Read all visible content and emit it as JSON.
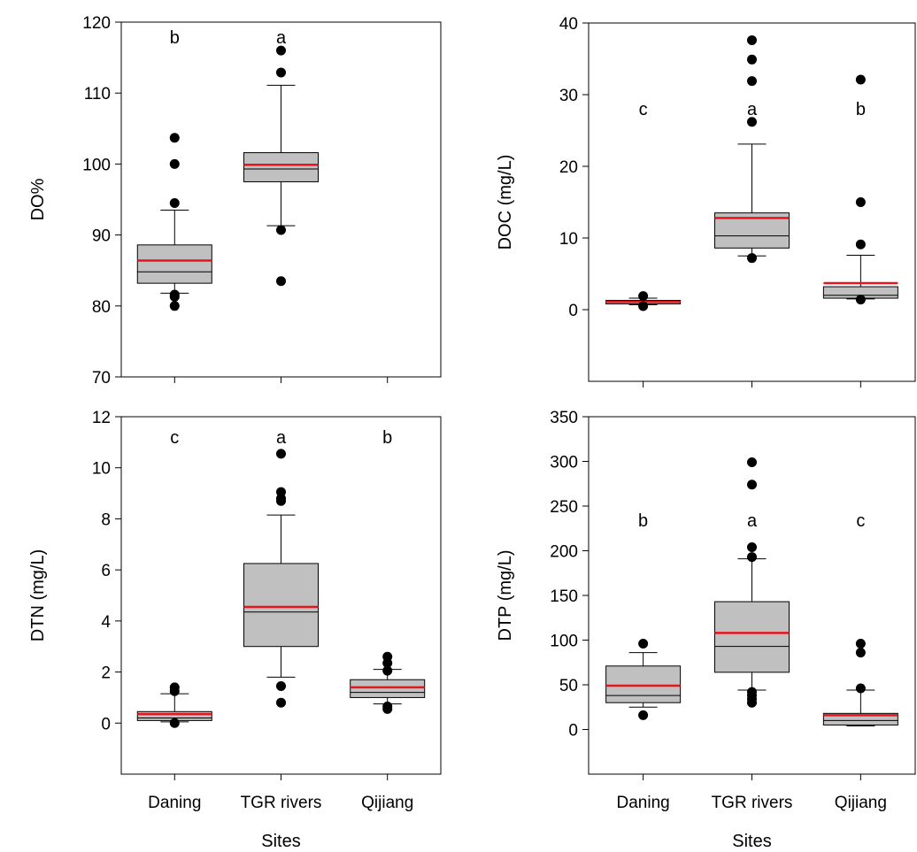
{
  "chart_data": [
    {
      "id": "do",
      "type": "box",
      "ylabel": "DO%",
      "xlabel": "",
      "ylim": [
        70,
        120
      ],
      "yticks": [
        70,
        80,
        90,
        100,
        110,
        120
      ],
      "categories": [
        "",
        "",
        ""
      ],
      "boxes": [
        {
          "q1": 83.2,
          "median": 84.8,
          "q3": 88.6,
          "mean": 86.4,
          "whisker_low": 81.8,
          "whisker_high": 93.5,
          "outliers": [
            80.0,
            81.3,
            81.6,
            94.5,
            100.0,
            103.7
          ],
          "letter": "b"
        },
        {
          "q1": 97.5,
          "median": 99.3,
          "q3": 101.6,
          "mean": 99.9,
          "whisker_low": 91.3,
          "whisker_high": 111.1,
          "outliers": [
            83.5,
            90.7,
            112.9,
            116.0
          ],
          "letter": "a"
        },
        null
      ]
    },
    {
      "id": "doc",
      "type": "box",
      "ylabel": "DOC (mg/L)",
      "xlabel": "",
      "ylim": [
        -10,
        40
      ],
      "yticks": [
        0,
        10,
        20,
        30,
        40
      ],
      "categories": [
        "",
        "",
        ""
      ],
      "boxes": [
        {
          "q1": 0.8,
          "median": 1.0,
          "q3": 1.3,
          "mean": 1.1,
          "whisker_low": 0.7,
          "whisker_high": 1.6,
          "outliers": [
            0.5,
            1.9
          ],
          "letter": "c"
        },
        {
          "q1": 8.6,
          "median": 10.3,
          "q3": 13.5,
          "mean": 12.8,
          "whisker_low": 7.5,
          "whisker_high": 23.1,
          "outliers": [
            7.2,
            26.2,
            31.9,
            34.9,
            37.6
          ],
          "letter": "a"
        },
        {
          "q1": 1.6,
          "median": 2.0,
          "q3": 3.2,
          "mean": 3.7,
          "whisker_low": 1.5,
          "whisker_high": 7.6,
          "outliers": [
            1.4,
            9.1,
            15.0,
            32.1
          ],
          "letter": "b"
        }
      ]
    },
    {
      "id": "dtn",
      "type": "box",
      "ylabel": "DTN (mg/L)",
      "xlabel": "Sites",
      "ylim": [
        -2,
        12
      ],
      "yticks": [
        0,
        2,
        4,
        6,
        8,
        10,
        12
      ],
      "categories": [
        "Daning",
        "TGR rivers",
        "Qijiang"
      ],
      "boxes": [
        {
          "q1": 0.1,
          "median": 0.2,
          "q3": 0.45,
          "mean": 0.35,
          "whisker_low": 0.05,
          "whisker_high": 1.15,
          "outliers": [
            0.0,
            1.25,
            1.4
          ],
          "letter": "c"
        },
        {
          "q1": 3.0,
          "median": 4.35,
          "q3": 6.25,
          "mean": 4.55,
          "whisker_low": 1.8,
          "whisker_high": 8.15,
          "outliers": [
            0.8,
            1.45,
            8.7,
            8.8,
            9.05,
            10.55
          ],
          "letter": "a"
        },
        {
          "q1": 1.0,
          "median": 1.2,
          "q3": 1.7,
          "mean": 1.4,
          "whisker_low": 0.75,
          "whisker_high": 2.1,
          "outliers": [
            0.55,
            0.65,
            2.05,
            2.35,
            2.6
          ],
          "letter": "b"
        }
      ]
    },
    {
      "id": "dtp",
      "type": "box",
      "ylabel": "DTP (mg/L)",
      "xlabel": "Sites",
      "ylim": [
        -50,
        350
      ],
      "yticks": [
        0,
        50,
        100,
        150,
        200,
        250,
        300,
        350
      ],
      "categories": [
        "Daning",
        "TGR rivers",
        "Qijiang"
      ],
      "boxes": [
        {
          "q1": 30,
          "median": 38,
          "q3": 71,
          "mean": 49,
          "whisker_low": 25,
          "whisker_high": 86,
          "outliers": [
            16,
            96
          ],
          "letter": "b"
        },
        {
          "q1": 64,
          "median": 93,
          "q3": 143,
          "mean": 108,
          "whisker_low": 44,
          "whisker_high": 191,
          "outliers": [
            30,
            34,
            38,
            42,
            193,
            204,
            274,
            299
          ],
          "letter": "a"
        },
        {
          "q1": 5,
          "median": 10,
          "q3": 18,
          "mean": 16,
          "whisker_low": 4,
          "whisker_high": 44,
          "outliers": [
            46,
            86,
            96
          ],
          "letter": "c"
        }
      ]
    }
  ],
  "colors": {
    "box_fill": "#c0c0c0",
    "mean_line": "#e8141c",
    "stroke": "#000000"
  }
}
